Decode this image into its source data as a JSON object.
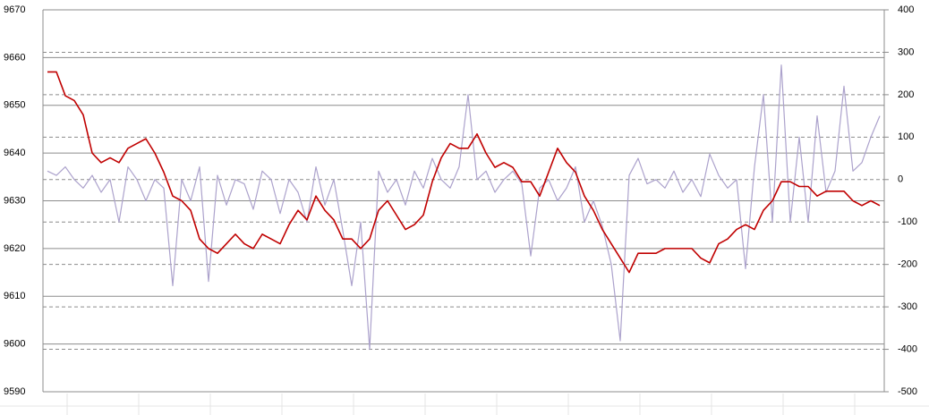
{
  "chart_data": {
    "type": "line",
    "categories": [
      null,
      null,
      null,
      null,
      null,
      null,
      null,
      null,
      null,
      null,
      null,
      null,
      null,
      null,
      null,
      null,
      null,
      null,
      null,
      null,
      null,
      null,
      null,
      null,
      null,
      null,
      null,
      null,
      null,
      null,
      null,
      null,
      null,
      null,
      null,
      null,
      null,
      null,
      null,
      null,
      null,
      null,
      null,
      null,
      null,
      null,
      null,
      null,
      null,
      null,
      null,
      null,
      null,
      null,
      null,
      null,
      null,
      null,
      null,
      null,
      null,
      null,
      null,
      null,
      null,
      null,
      null,
      null,
      null,
      null,
      null,
      null,
      null,
      null,
      null,
      null,
      null,
      null,
      null,
      null,
      null,
      null,
      null,
      null,
      null,
      null,
      null,
      null,
      null,
      null,
      null,
      null,
      null,
      null
    ],
    "series": [
      {
        "color": "#c00000",
        "values": [
          9657,
          9657,
          9652,
          9651,
          9648,
          9640,
          9638,
          9639,
          9638,
          9641,
          9642,
          9643,
          9640,
          9636,
          9631,
          9630,
          9628,
          9622,
          9620,
          9619,
          9621,
          9623,
          9621,
          9620,
          9623,
          9622,
          9621,
          9625,
          9628,
          9626,
          9631,
          9628,
          9626,
          9622,
          9622,
          9620,
          9622,
          9628,
          9630,
          9627,
          9624,
          9625,
          9627,
          9634,
          9639,
          9642,
          9641,
          9641,
          9644,
          9640,
          9637,
          9638,
          9637,
          9634,
          9634,
          9631,
          9636,
          9641,
          9638,
          9636,
          9631,
          9628,
          9624,
          9621,
          9618,
          9615,
          9619,
          9619,
          9619,
          9620,
          9620,
          9620,
          9620,
          9618,
          9617,
          9621,
          9622,
          9624,
          9625,
          9624,
          9628,
          9630,
          9634,
          9634,
          9633,
          9633,
          9631,
          9632,
          9632,
          9632,
          9630,
          9629,
          9630,
          9629
        ]
      },
      {
        "color": "#aca2cc",
        "axis": "y2",
        "values": [
          20,
          10,
          30,
          0,
          -20,
          10,
          -30,
          0,
          -100,
          30,
          0,
          -50,
          0,
          -20,
          -250,
          0,
          -50,
          30,
          -240,
          10,
          -60,
          0,
          -10,
          -70,
          20,
          0,
          -80,
          0,
          -30,
          -100,
          30,
          -60,
          0,
          -120,
          -250,
          -100,
          -400,
          20,
          -30,
          0,
          -60,
          20,
          -20,
          50,
          0,
          -20,
          30,
          200,
          0,
          20,
          -30,
          0,
          20,
          -10,
          -180,
          -20,
          0,
          -50,
          -20,
          30,
          -100,
          -50,
          -110,
          -200,
          -380,
          10,
          50,
          -10,
          0,
          -20,
          20,
          -30,
          0,
          -40,
          60,
          10,
          -20,
          0,
          -210,
          30,
          200,
          -100,
          270,
          -100,
          100,
          -100,
          150,
          -30,
          20,
          220,
          20,
          40,
          100,
          150
        ]
      }
    ],
    "ylim": [
      9590,
      9670
    ],
    "yticks": [
      9590,
      9600,
      9610,
      9620,
      9630,
      9640,
      9650,
      9660,
      9670
    ],
    "y2lim": [
      -500,
      400
    ],
    "y2ticks": [
      -500,
      -400,
      -300,
      -200,
      -100,
      0,
      100,
      200,
      300,
      400
    ],
    "grid": true
  }
}
